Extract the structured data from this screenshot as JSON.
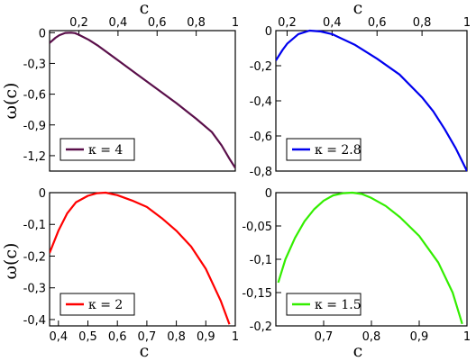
{
  "figure": {
    "xlabel": "c",
    "ylabel": "ω(c)"
  },
  "chart_data": [
    {
      "type": "line",
      "panel": "top-left",
      "xlim": [
        0.05,
        1.0
      ],
      "ylim": [
        -1.35,
        0.02
      ],
      "xticks": [
        0.2,
        0.4,
        0.6,
        0.8,
        1.0
      ],
      "xtick_labels": [
        "0,2",
        "0,4",
        "0,6",
        "0,8",
        "1"
      ],
      "xtick_side": "top",
      "yticks": [
        0,
        -0.3,
        -0.6,
        -0.9,
        -1.2
      ],
      "ytick_labels": [
        "0",
        "-0,3",
        "-0,6",
        "-0,9",
        "-1,2"
      ],
      "legend_position": "bottom-left",
      "series": [
        {
          "name": "κ = 4",
          "color": "#5a0f4a",
          "x": [
            0.05,
            0.08,
            0.1,
            0.13,
            0.16,
            0.18,
            0.2,
            0.25,
            0.3,
            0.4,
            0.5,
            0.6,
            0.7,
            0.8,
            0.88,
            0.93,
            0.97,
            1.0
          ],
          "y": [
            -0.1,
            -0.05,
            -0.025,
            -0.003,
            0.0,
            -0.005,
            -0.02,
            -0.07,
            -0.13,
            -0.27,
            -0.41,
            -0.55,
            -0.69,
            -0.84,
            -0.97,
            -1.1,
            -1.23,
            -1.32
          ]
        }
      ]
    },
    {
      "type": "line",
      "panel": "top-right",
      "xlim": [
        0.15,
        1.0
      ],
      "ylim": [
        -0.8,
        0.0
      ],
      "xticks": [
        0.2,
        0.4,
        0.6,
        0.8,
        1.0
      ],
      "xtick_labels": [
        "0,2",
        "0,4",
        "0,6",
        "0,8",
        "1"
      ],
      "xtick_side": "top",
      "yticks": [
        0,
        -0.2,
        -0.4,
        -0.6,
        -0.8
      ],
      "ytick_labels": [
        "0",
        "-0,2",
        "-0,4",
        "-0,6",
        "-0,8"
      ],
      "legend_position": "bottom-left",
      "series": [
        {
          "name": "κ = 2.8",
          "color": "#0000ee",
          "x": [
            0.15,
            0.18,
            0.2,
            0.25,
            0.3,
            0.35,
            0.4,
            0.5,
            0.6,
            0.7,
            0.8,
            0.85,
            0.9,
            0.95,
            1.0
          ],
          "y": [
            -0.17,
            -0.11,
            -0.075,
            -0.02,
            0.0,
            -0.005,
            -0.02,
            -0.08,
            -0.16,
            -0.25,
            -0.38,
            -0.46,
            -0.56,
            -0.67,
            -0.8
          ]
        }
      ]
    },
    {
      "type": "line",
      "panel": "bottom-left",
      "xlim": [
        0.37,
        1.0
      ],
      "ylim": [
        -0.42,
        0.0
      ],
      "xticks": [
        0.4,
        0.5,
        0.6,
        0.7,
        0.8,
        0.9,
        1.0
      ],
      "xtick_labels": [
        "0,4",
        "0,5",
        "0,6",
        "0,7",
        "0,8",
        "0,9",
        "1"
      ],
      "xtick_side": "bottom",
      "yticks": [
        0,
        -0.1,
        -0.2,
        -0.3,
        -0.4
      ],
      "ytick_labels": [
        "0",
        "-0,1",
        "-0,2",
        "-0,3",
        "-0,4"
      ],
      "legend_position": "bottom-left",
      "series": [
        {
          "name": "κ = 2",
          "color": "#ff0000",
          "x": [
            0.37,
            0.4,
            0.43,
            0.46,
            0.5,
            0.53,
            0.56,
            0.6,
            0.65,
            0.7,
            0.75,
            0.8,
            0.85,
            0.9,
            0.95,
            0.98
          ],
          "y": [
            -0.19,
            -0.12,
            -0.065,
            -0.03,
            -0.01,
            -0.002,
            0.0,
            -0.008,
            -0.025,
            -0.045,
            -0.08,
            -0.12,
            -0.17,
            -0.24,
            -0.34,
            -0.415
          ]
        }
      ]
    },
    {
      "type": "line",
      "panel": "bottom-right",
      "xlim": [
        0.6,
        1.0
      ],
      "ylim": [
        -0.2,
        0.0
      ],
      "xticks": [
        0.7,
        0.8,
        0.9,
        1.0
      ],
      "xtick_labels": [
        "0,7",
        "0,8",
        "0,9",
        "1"
      ],
      "xtick_side": "bottom",
      "yticks": [
        0,
        -0.05,
        -0.1,
        -0.15,
        -0.2
      ],
      "ytick_labels": [
        "0",
        "-0,05",
        "-0,1",
        "-0,15",
        "-0,2"
      ],
      "legend_position": "bottom-left",
      "series": [
        {
          "name": "κ = 1.5",
          "color": "#33ee00",
          "x": [
            0.605,
            0.62,
            0.64,
            0.66,
            0.68,
            0.7,
            0.72,
            0.74,
            0.76,
            0.78,
            0.8,
            0.83,
            0.86,
            0.9,
            0.94,
            0.97,
            0.99
          ],
          "y": [
            -0.135,
            -0.1,
            -0.068,
            -0.043,
            -0.025,
            -0.012,
            -0.004,
            -0.001,
            0.0,
            -0.002,
            -0.008,
            -0.02,
            -0.037,
            -0.065,
            -0.105,
            -0.15,
            -0.197
          ]
        }
      ]
    }
  ]
}
